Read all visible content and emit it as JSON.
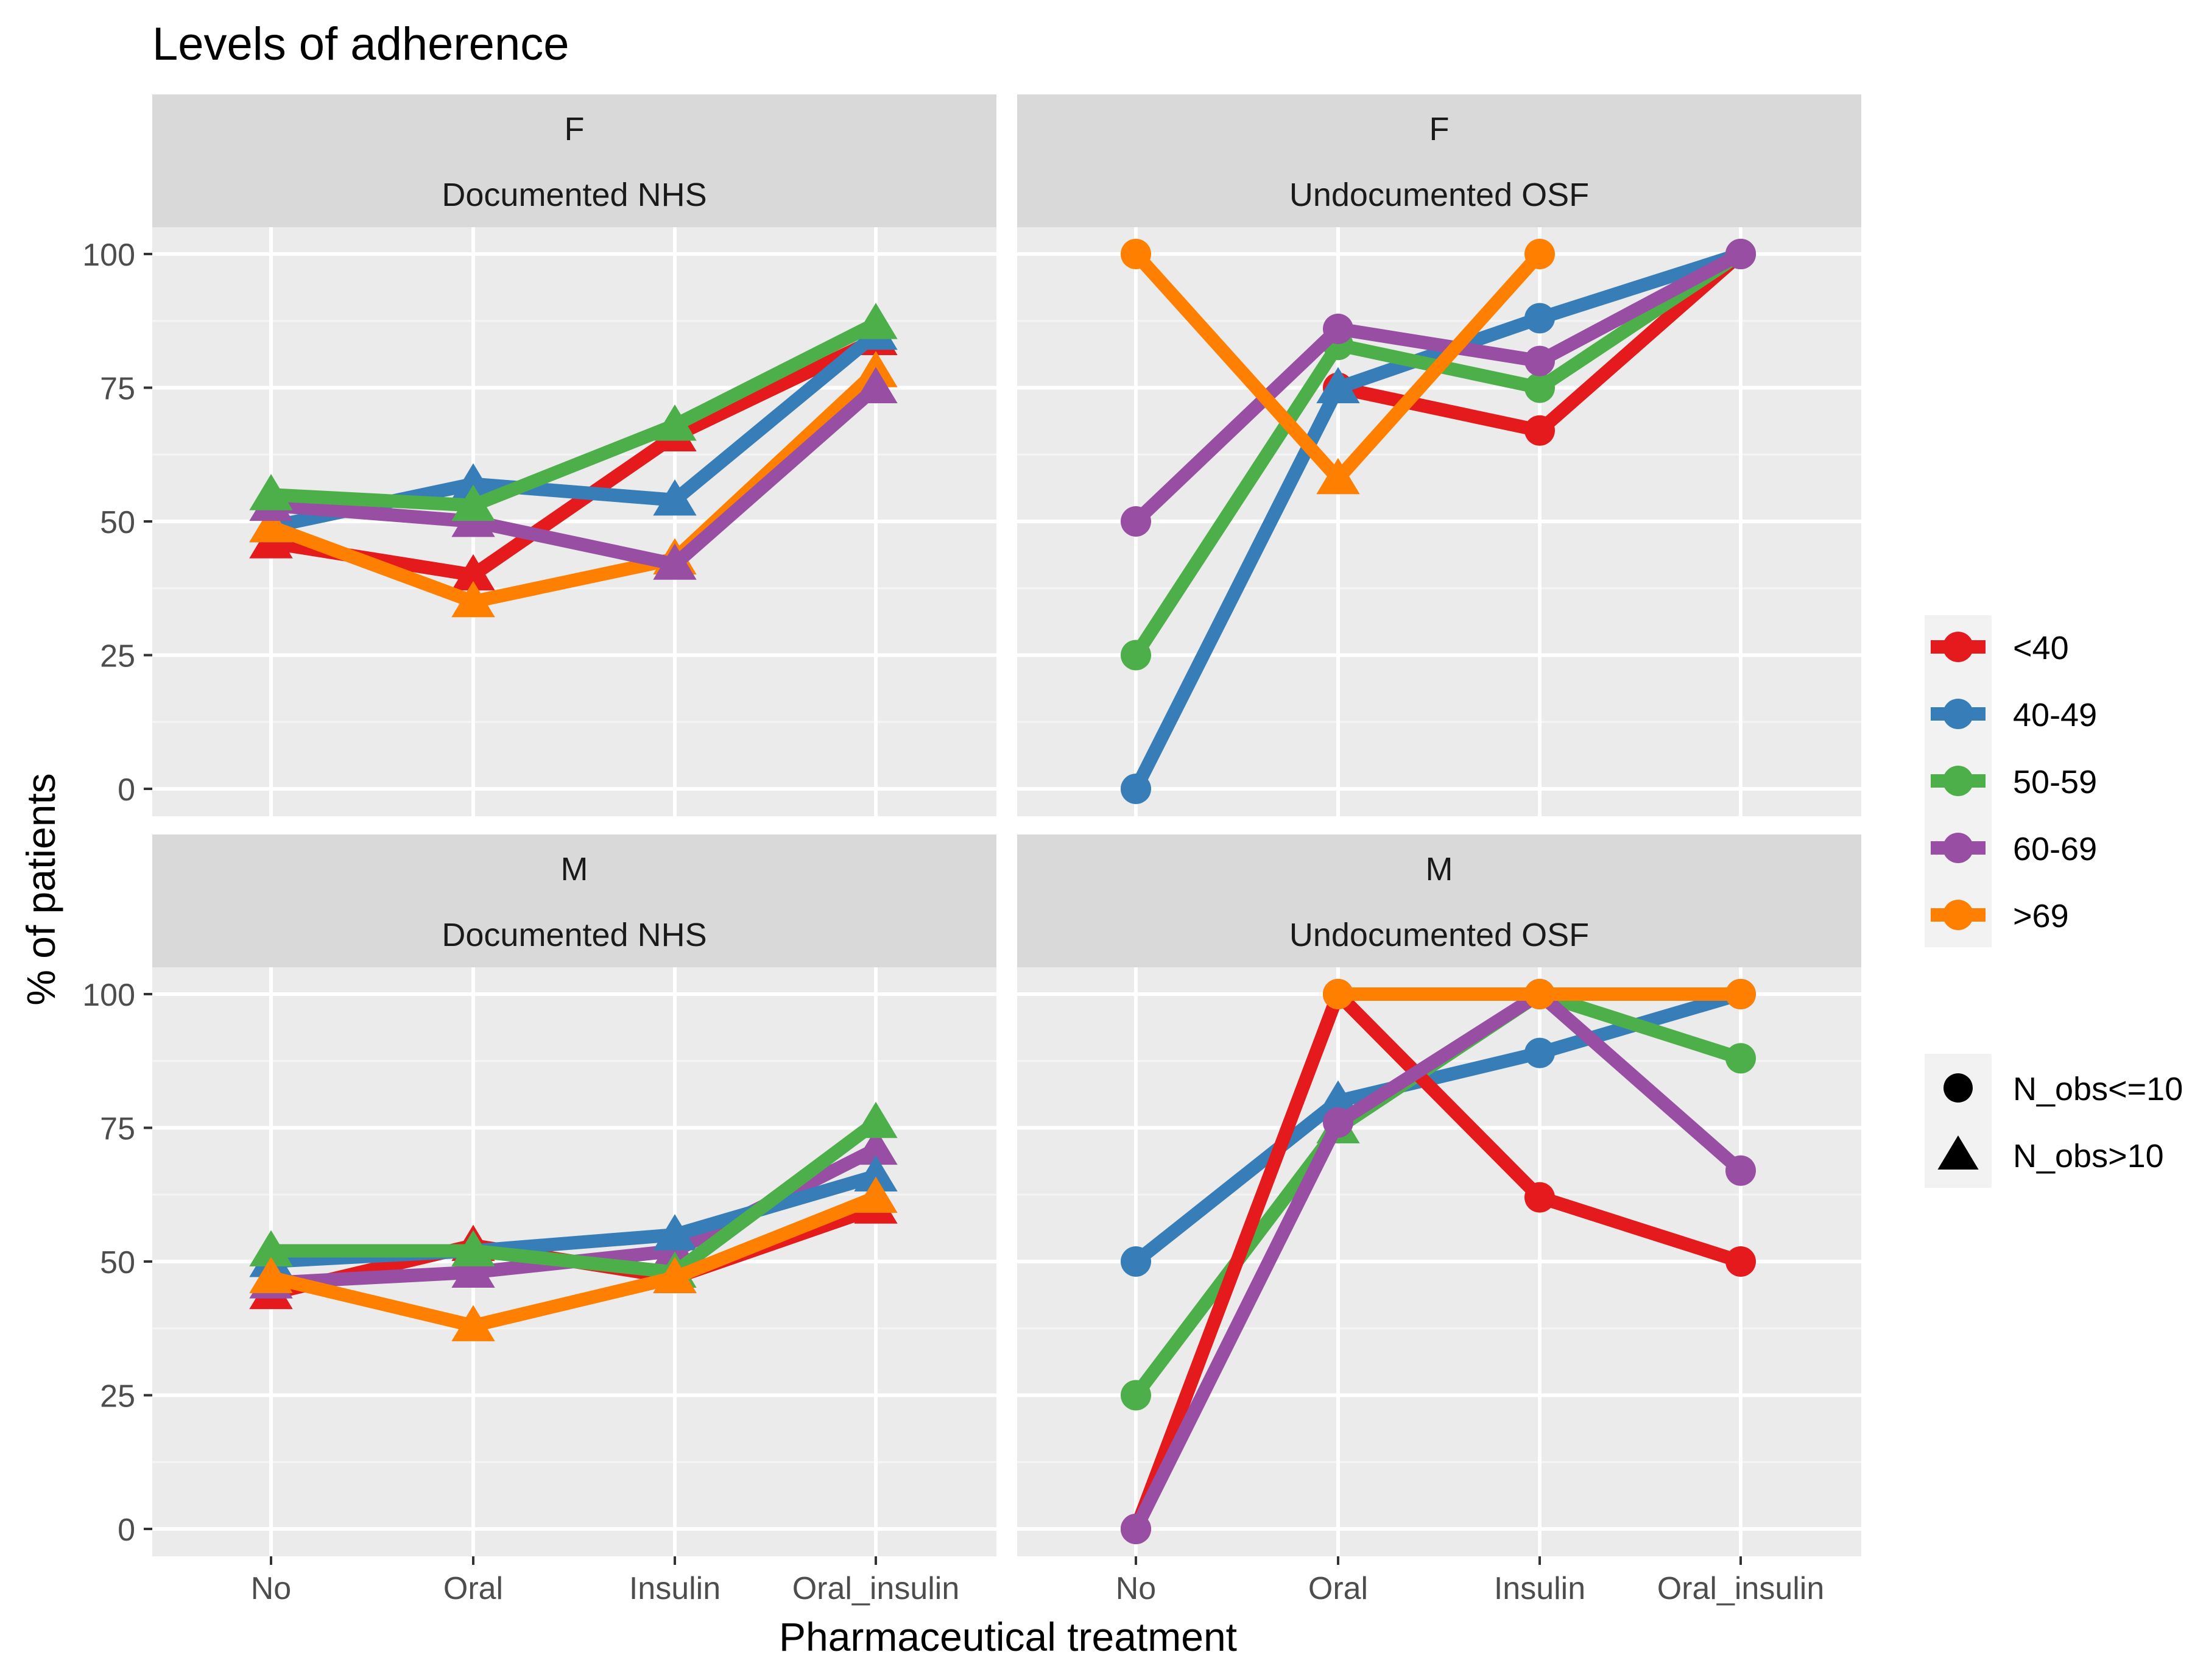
{
  "chart_data": {
    "type": "line",
    "title": "Levels of adherence",
    "xlabel": "Pharmaceutical treatment",
    "ylabel": "% of patients",
    "categories": [
      "No",
      "Oral",
      "Insulin",
      "Oral_insulin"
    ],
    "ylim": [
      0,
      100
    ],
    "yticks": [
      "0",
      "25",
      "50",
      "75",
      "100"
    ],
    "legend": {
      "position": "right",
      "groups": [
        {
          "label": "<40",
          "color": "#e41a1c"
        },
        {
          "label": "40-49",
          "color": "#377eb8"
        },
        {
          "label": "50-59",
          "color": "#4daf4a"
        },
        {
          "label": "60-69",
          "color": "#984ea3"
        },
        {
          "label": ">69",
          "color": "#ff7f00"
        }
      ],
      "shapes": [
        {
          "label": "N_obs<=10",
          "shape": "circle"
        },
        {
          "label": "N_obs>10",
          "shape": "triangle"
        }
      ]
    },
    "panels": [
      {
        "id": "f-nhs",
        "strip_top": "F",
        "strip_bottom": "Documented NHS",
        "series": [
          {
            "name": "<40",
            "values": [
              46,
              40,
              66,
              84
            ],
            "shapes": [
              "triangle",
              "triangle",
              "triangle",
              "triangle"
            ]
          },
          {
            "name": "40-49",
            "values": [
              49,
              57,
              54,
              85
            ],
            "shapes": [
              "triangle",
              "triangle",
              "triangle",
              "triangle"
            ]
          },
          {
            "name": ">69",
            "values": [
              49,
              35,
              43,
              78
            ],
            "shapes": [
              "triangle",
              "triangle",
              "triangle",
              "triangle"
            ]
          },
          {
            "name": "60-69",
            "values": [
              53,
              50,
              42,
              75
            ],
            "shapes": [
              "triangle",
              "triangle",
              "triangle",
              "triangle"
            ]
          },
          {
            "name": "50-59",
            "values": [
              55,
              53,
              68,
              87
            ],
            "shapes": [
              "triangle",
              "triangle",
              "triangle",
              "triangle"
            ]
          }
        ]
      },
      {
        "id": "f-osf",
        "strip_top": "F",
        "strip_bottom": "Undocumented OSF",
        "series": [
          {
            "name": "<40",
            "values": [
              null,
              75,
              67,
              100
            ],
            "shapes": [
              "circle",
              "circle",
              "circle",
              "circle"
            ]
          },
          {
            "name": "40-49",
            "values": [
              0,
              75,
              88,
              100
            ],
            "shapes": [
              "circle",
              "triangle",
              "circle",
              "circle"
            ]
          },
          {
            "name": "50-59",
            "values": [
              25,
              83,
              75,
              100
            ],
            "shapes": [
              "circle",
              "circle",
              "circle",
              "circle"
            ]
          },
          {
            "name": "60-69",
            "values": [
              50,
              86,
              80,
              100
            ],
            "shapes": [
              "circle",
              "circle",
              "circle",
              "circle"
            ]
          },
          {
            "name": ">69",
            "values": [
              100,
              58,
              100,
              null
            ],
            "shapes": [
              "circle",
              "triangle",
              "circle",
              "circle"
            ]
          }
        ]
      },
      {
        "id": "m-nhs",
        "strip_top": "M",
        "strip_bottom": "Documented NHS",
        "series": [
          {
            "name": "<40",
            "values": [
              44,
              53,
              47,
              60
            ],
            "shapes": [
              "triangle",
              "triangle",
              "triangle",
              "triangle"
            ]
          },
          {
            "name": "60-69",
            "values": [
              46,
              48,
              52,
              71
            ],
            "shapes": [
              "triangle",
              "triangle",
              "triangle",
              "triangle"
            ]
          },
          {
            "name": "40-49",
            "values": [
              50,
              52,
              55,
              66
            ],
            "shapes": [
              "triangle",
              "triangle",
              "triangle",
              "triangle"
            ]
          },
          {
            "name": "50-59",
            "values": [
              52,
              52,
              48,
              76
            ],
            "shapes": [
              "triangle",
              "triangle",
              "triangle",
              "triangle"
            ]
          },
          {
            "name": ">69",
            "values": [
              47,
              38,
              47,
              62
            ],
            "shapes": [
              "triangle",
              "triangle",
              "triangle",
              "triangle"
            ]
          }
        ]
      },
      {
        "id": "m-osf",
        "strip_top": "M",
        "strip_bottom": "Undocumented OSF",
        "series": [
          {
            "name": "40-49",
            "values": [
              50,
              80,
              89,
              100
            ],
            "shapes": [
              "circle",
              "triangle",
              "circle",
              "circle"
            ]
          },
          {
            "name": "50-59",
            "values": [
              25,
              75,
              100,
              88
            ],
            "shapes": [
              "circle",
              "triangle",
              "circle",
              "circle"
            ]
          },
          {
            "name": "<40",
            "values": [
              0,
              100,
              62,
              50
            ],
            "shapes": [
              "circle",
              "circle",
              "circle",
              "circle"
            ]
          },
          {
            "name": "60-69",
            "values": [
              0,
              76,
              100,
              67
            ],
            "shapes": [
              "circle",
              "circle",
              "circle",
              "circle"
            ]
          },
          {
            "name": ">69",
            "values": [
              null,
              100,
              100,
              100
            ],
            "shapes": [
              "circle",
              "circle",
              "circle",
              "circle"
            ]
          }
        ]
      }
    ]
  }
}
